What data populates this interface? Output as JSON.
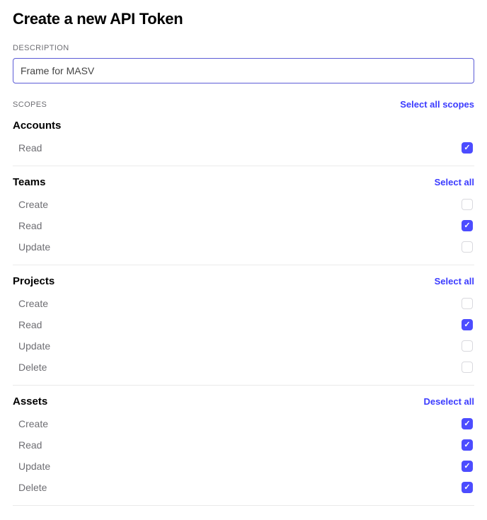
{
  "colors": {
    "accent": "#4c4cff",
    "link": "#3b3bff",
    "text_muted": "#6e6e73",
    "border_light": "#eaeaea",
    "input_border": "#5b5bd6",
    "checkbox_border": "#d9d9de",
    "bg": "#ffffff"
  },
  "header": {
    "title": "Create a new API Token"
  },
  "description": {
    "label": "DESCRIPTION",
    "value": "Frame for MASV"
  },
  "scopes": {
    "label": "SCOPES",
    "select_all_label": "Select all scopes"
  },
  "groups": [
    {
      "title": "Accounts",
      "select_label": "",
      "permissions": [
        {
          "label": "Read",
          "checked": true
        }
      ]
    },
    {
      "title": "Teams",
      "select_label": "Select all",
      "permissions": [
        {
          "label": "Create",
          "checked": false
        },
        {
          "label": "Read",
          "checked": true
        },
        {
          "label": "Update",
          "checked": false
        }
      ]
    },
    {
      "title": "Projects",
      "select_label": "Select all",
      "permissions": [
        {
          "label": "Create",
          "checked": false
        },
        {
          "label": "Read",
          "checked": true
        },
        {
          "label": "Update",
          "checked": false
        },
        {
          "label": "Delete",
          "checked": false
        }
      ]
    },
    {
      "title": "Assets",
      "select_label": "Deselect all",
      "permissions": [
        {
          "label": "Create",
          "checked": true
        },
        {
          "label": "Read",
          "checked": true
        },
        {
          "label": "Update",
          "checked": true
        },
        {
          "label": "Delete",
          "checked": true
        }
      ]
    }
  ]
}
